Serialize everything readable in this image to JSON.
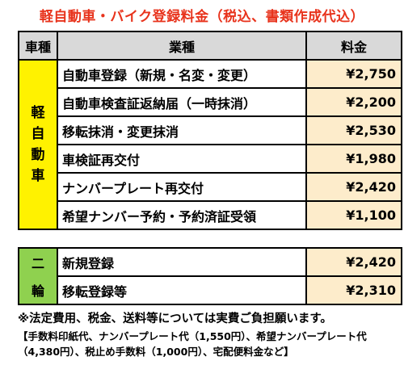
{
  "title": "軽自動車・バイク登録料金（税込、書類作成代込）",
  "header": {
    "category": "車種",
    "service": "業種",
    "fee": "料金"
  },
  "kei": {
    "category_label": "軽自動車",
    "rows": [
      {
        "service": "自動車登録（新規・名変・変更）",
        "fee": "¥2,750"
      },
      {
        "service": "自動車検査証返納届（一時抹消）",
        "fee": "¥2,200"
      },
      {
        "service": "移転抹消・変更抹消",
        "fee": "¥2,530"
      },
      {
        "service": "車検証再交付",
        "fee": "¥1,980"
      },
      {
        "service": "ナンバープレート再交付",
        "fee": "¥2,420"
      },
      {
        "service": "希望ナンバー予約・予約済証受領",
        "fee": "¥1,100"
      }
    ]
  },
  "nirin": {
    "category_top": "二",
    "category_bottom": "輪",
    "rows": [
      {
        "service": "新規登録",
        "fee": "¥2,420"
      },
      {
        "service": "移転登録等",
        "fee": "¥2,310"
      }
    ]
  },
  "notes": {
    "line1": "※法定費用、税金、送料等については実費ご負担願います。",
    "line2": "【手数料印紙代、ナンバープレート代（1,550円）、希望ナンバープレート代（4,380円）、税止め手数料（1,000円）、宅配便料金など】"
  },
  "colors": {
    "title": "#e8331c",
    "header_bg": "#d9d9d9",
    "kei_category_bg": "#fff200",
    "nirin_category_bg": "#8fd14f",
    "price_bg": "#fdeccb"
  }
}
